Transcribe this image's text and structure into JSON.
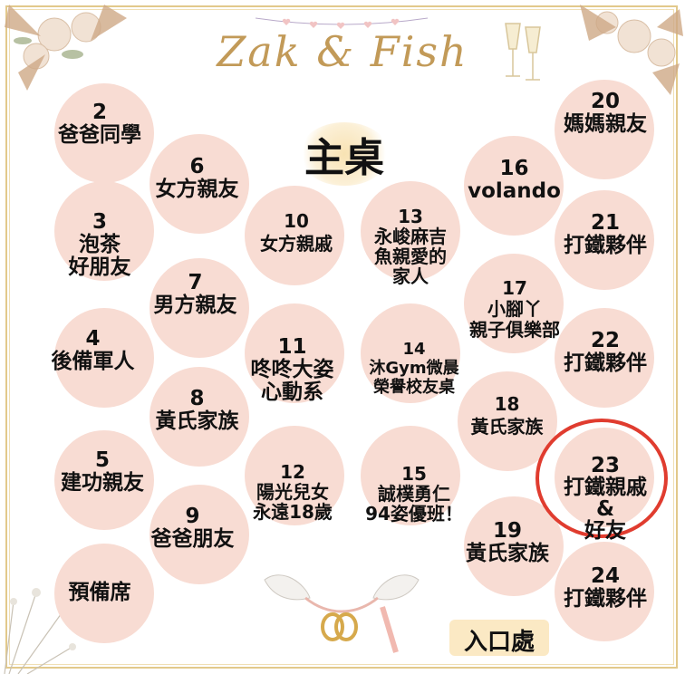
{
  "title": "Zak & Fish",
  "main_table": "主桌",
  "entrance": "入口處",
  "colors": {
    "circle": "#f8dcd3",
    "accent_ring": "#e03c2f",
    "gold": "#c29a58"
  },
  "tables": [
    {
      "num": "2",
      "name": "爸爸同學"
    },
    {
      "num": "3",
      "name": "泡茶\n好朋友"
    },
    {
      "num": "4",
      "name": "後備軍人"
    },
    {
      "num": "5",
      "name": "建功親友"
    },
    {
      "num": "",
      "name": "預備席"
    },
    {
      "num": "6",
      "name": "女方親友"
    },
    {
      "num": "7",
      "name": "男方親友"
    },
    {
      "num": "8",
      "name": "黃氏家族"
    },
    {
      "num": "9",
      "name": "爸爸朋友"
    },
    {
      "num": "10",
      "name": "女方親戚"
    },
    {
      "num": "11",
      "name": "咚咚大姿\n心動系"
    },
    {
      "num": "12",
      "name": "陽光兒女\n永遠18歲"
    },
    {
      "num": "13",
      "name": "永峻麻吉\n魚親愛的\n家人"
    },
    {
      "num": "14",
      "name": "沐Gym微晨\n榮譽校友桌"
    },
    {
      "num": "15",
      "name": "誠樸勇仁\n94姿優班！"
    },
    {
      "num": "16",
      "name": "volando"
    },
    {
      "num": "17",
      "name": "小腳丫\n親子俱樂部"
    },
    {
      "num": "18",
      "name": "黃氏家族"
    },
    {
      "num": "19",
      "name": "黃氏家族"
    },
    {
      "num": "20",
      "name": "媽媽親友"
    },
    {
      "num": "21",
      "name": "打鐵夥伴"
    },
    {
      "num": "22",
      "name": "打鐵夥伴"
    },
    {
      "num": "23",
      "name": "打鐵親戚\n&\n好友"
    },
    {
      "num": "24",
      "name": "打鐵夥伴"
    }
  ]
}
